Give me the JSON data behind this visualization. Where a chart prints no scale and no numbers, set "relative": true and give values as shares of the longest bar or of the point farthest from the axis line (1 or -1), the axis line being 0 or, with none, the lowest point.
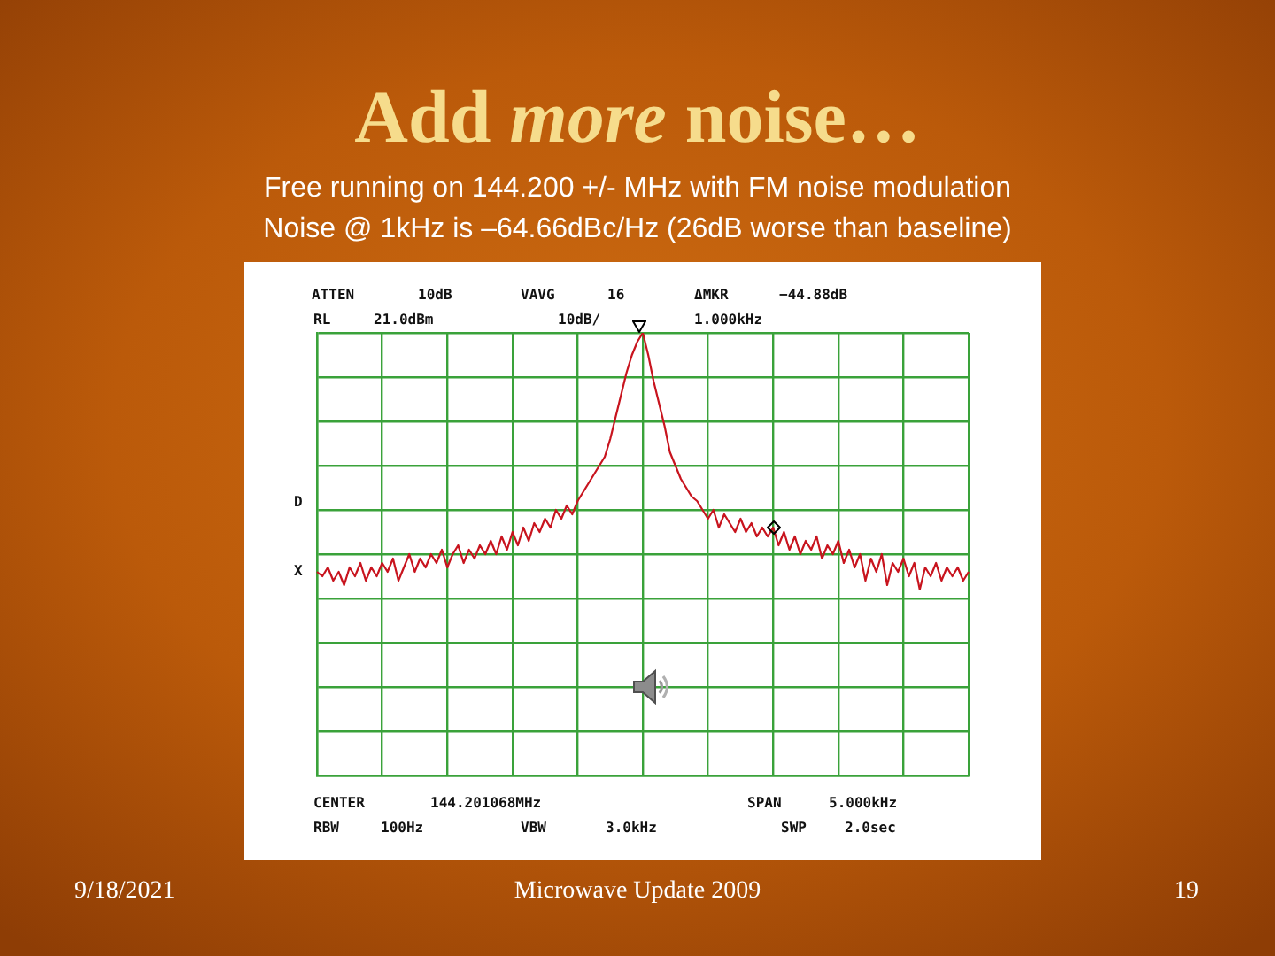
{
  "chart_data": {
    "type": "line",
    "title": "Add more noise…",
    "subtitle": "Free running on 144.200 +/- MHz with FM noise modulation\nNoise @ 1kHz is –64.66dBc/Hz (26dB worse than baseline)",
    "annotations": [
      "ATTEN",
      "10dB",
      "VAVG",
      "16",
      "ΔMKR",
      "−44.88dB",
      "RL",
      "21.0dBm",
      "10dB/",
      "1.000kHz",
      "CENTER",
      "144.201068MHz",
      "SPAN",
      "5.000kHz",
      "RBW",
      "100Hz",
      "VBW",
      "3.0kHz",
      "SWP",
      "2.0sec",
      "D",
      "X",
      "9/18/2021",
      "Microwave Update 2009",
      "19"
    ],
    "categories": [
      null,
      null,
      null,
      null,
      null,
      null,
      null,
      null,
      null,
      null,
      null,
      null,
      null,
      null,
      null,
      null,
      null,
      null,
      null,
      null,
      null,
      null,
      null,
      null,
      null,
      null,
      null,
      null,
      null,
      null,
      null,
      null,
      null,
      null,
      null,
      null,
      null,
      null,
      null,
      null,
      null,
      null,
      null,
      null,
      null,
      null,
      null,
      null,
      null,
      null,
      null,
      null,
      null,
      null,
      null,
      null,
      null,
      null,
      null,
      null,
      null,
      null,
      null,
      null,
      null,
      null,
      null,
      null,
      null,
      null,
      null,
      null,
      null,
      null,
      null,
      null,
      null,
      null,
      null,
      null,
      null,
      null,
      null,
      null,
      null,
      null,
      null,
      null,
      null,
      null,
      null,
      null,
      null,
      null,
      null,
      null,
      null,
      null,
      null,
      null,
      null,
      null,
      null,
      null,
      null,
      null,
      null,
      null,
      null,
      null,
      null,
      null,
      null,
      null,
      null,
      null,
      null,
      null,
      null,
      null,
      null
    ],
    "series": [
      {
        "color": "#c8141e",
        "values": [
          0.46,
          0.45,
          0.47,
          0.44,
          0.46,
          0.43,
          0.47,
          0.45,
          0.48,
          0.44,
          0.47,
          0.45,
          0.48,
          0.46,
          0.49,
          0.44,
          0.47,
          0.5,
          0.46,
          0.49,
          0.47,
          0.5,
          0.48,
          0.51,
          0.47,
          0.5,
          0.52,
          0.48,
          0.51,
          0.49,
          0.52,
          0.5,
          0.53,
          0.5,
          0.54,
          0.51,
          0.55,
          0.52,
          0.56,
          0.53,
          0.57,
          0.55,
          0.58,
          0.56,
          0.6,
          0.58,
          0.61,
          0.59,
          0.62,
          0.64,
          0.66,
          0.68,
          0.7,
          0.72,
          0.76,
          0.81,
          0.86,
          0.91,
          0.95,
          0.98,
          1.0,
          0.95,
          0.89,
          0.84,
          0.79,
          0.73,
          0.7,
          0.67,
          0.65,
          0.63,
          0.62,
          0.6,
          0.58,
          0.6,
          0.56,
          0.59,
          0.57,
          0.55,
          0.58,
          0.55,
          0.57,
          0.54,
          0.56,
          0.54,
          0.56,
          0.52,
          0.55,
          0.51,
          0.54,
          0.5,
          0.53,
          0.51,
          0.54,
          0.49,
          0.52,
          0.5,
          0.53,
          0.48,
          0.51,
          0.47,
          0.5,
          0.44,
          0.49,
          0.46,
          0.5,
          0.43,
          0.48,
          0.46,
          0.49,
          0.45,
          0.48,
          0.42,
          0.47,
          0.45,
          0.48,
          0.44,
          0.47,
          0.45,
          0.47,
          0.44,
          0.46
        ]
      }
    ],
    "relative": true,
    "grid": true,
    "tick_labels": false
  }
}
